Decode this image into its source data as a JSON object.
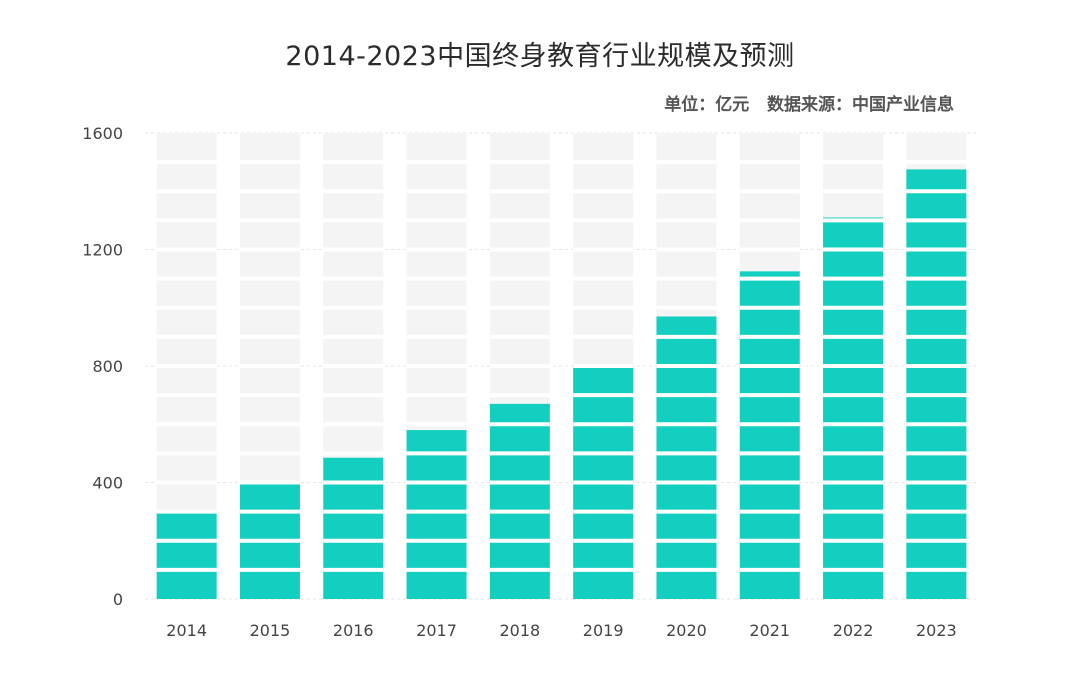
{
  "chart_data": {
    "type": "bar",
    "title": "2014-2023中国终身教育行业规模及预测",
    "source_note": "单位：亿元   数据来源：中国产业信息",
    "categories": [
      "2014",
      "2015",
      "2016",
      "2017",
      "2018",
      "2019",
      "2020",
      "2021",
      "2022",
      "2023"
    ],
    "values": [
      295,
      400,
      485,
      580,
      670,
      805,
      970,
      1125,
      1310,
      1475
    ],
    "ylim": [
      0,
      1600
    ],
    "yticks": [
      "0",
      "400",
      "800",
      "1200",
      "1600"
    ],
    "bar_color": "#13cfbf",
    "background_bar_color": "#f4f4f4",
    "grid": true
  }
}
